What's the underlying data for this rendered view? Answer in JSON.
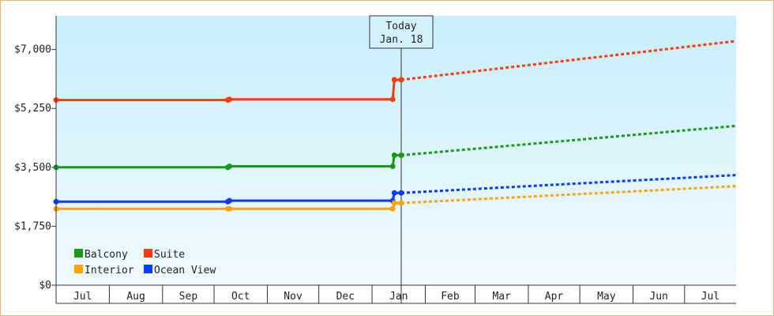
{
  "chart_data": {
    "type": "line",
    "title": "",
    "xlabel": "",
    "ylabel": "",
    "ylim": [
      0,
      8000
    ],
    "y_ticks": [
      {
        "value": 0,
        "label": "$0"
      },
      {
        "value": 1750,
        "label": "$1,750"
      },
      {
        "value": 3500,
        "label": "$3,500"
      },
      {
        "value": 5250,
        "label": "$5,250"
      },
      {
        "value": 7000,
        "label": "$7,000"
      }
    ],
    "x_range": [
      "2023-07-01",
      "2024-07-31"
    ],
    "x_months": [
      {
        "label": "Jul",
        "start": "2023-07-01"
      },
      {
        "label": "Aug",
        "start": "2023-08-01"
      },
      {
        "label": "Sep",
        "start": "2023-09-01"
      },
      {
        "label": "Oct",
        "start": "2023-10-01"
      },
      {
        "label": "Nov",
        "start": "2023-11-01"
      },
      {
        "label": "Dec",
        "start": "2023-12-01"
      },
      {
        "label": "Jan",
        "start": "2024-01-01"
      },
      {
        "label": "Feb",
        "start": "2024-02-01"
      },
      {
        "label": "Mar",
        "start": "2024-03-01"
      },
      {
        "label": "Apr",
        "start": "2024-04-01"
      },
      {
        "label": "May",
        "start": "2024-05-01"
      },
      {
        "label": "Jun",
        "start": "2024-06-01"
      },
      {
        "label": "Jul",
        "start": "2024-07-01"
      }
    ],
    "today": {
      "date": "2024-01-18",
      "label_line1": "Today",
      "label_line2": "Jan. 18"
    },
    "legend_position": "bottom-left",
    "grid": false,
    "colors": {
      "plot_top": "#c8eefa",
      "plot_bottom": "#f1fafe",
      "frame_border": "#e3b87a"
    },
    "series": [
      {
        "name": "Suite",
        "color": "#ff3a0a",
        "historical": [
          {
            "x": "2023-07-01",
            "y": 5500
          },
          {
            "x": "2023-10-09",
            "y": 5500
          },
          {
            "x": "2023-10-10",
            "y": 5520
          },
          {
            "x": "2024-01-13",
            "y": 5520
          },
          {
            "x": "2024-01-14",
            "y": 6100
          },
          {
            "x": "2024-01-18",
            "y": 6100
          }
        ],
        "projected": [
          {
            "x": "2024-01-18",
            "y": 6100
          },
          {
            "x": "2024-07-31",
            "y": 7250
          }
        ]
      },
      {
        "name": "Balcony",
        "color": "#189a18",
        "historical": [
          {
            "x": "2023-07-01",
            "y": 3500
          },
          {
            "x": "2023-10-09",
            "y": 3500
          },
          {
            "x": "2023-10-10",
            "y": 3530
          },
          {
            "x": "2024-01-13",
            "y": 3530
          },
          {
            "x": "2024-01-14",
            "y": 3860
          },
          {
            "x": "2024-01-18",
            "y": 3860
          }
        ],
        "projected": [
          {
            "x": "2024-01-18",
            "y": 3860
          },
          {
            "x": "2024-07-31",
            "y": 4730
          }
        ]
      },
      {
        "name": "Ocean View",
        "color": "#0a3cff",
        "historical": [
          {
            "x": "2023-07-01",
            "y": 2480
          },
          {
            "x": "2023-10-09",
            "y": 2480
          },
          {
            "x": "2023-10-10",
            "y": 2510
          },
          {
            "x": "2024-01-13",
            "y": 2510
          },
          {
            "x": "2024-01-14",
            "y": 2740
          },
          {
            "x": "2024-01-18",
            "y": 2740
          }
        ],
        "projected": [
          {
            "x": "2024-01-18",
            "y": 2740
          },
          {
            "x": "2024-07-31",
            "y": 3270
          }
        ]
      },
      {
        "name": "Interior",
        "color": "#ffa20a",
        "historical": [
          {
            "x": "2023-07-01",
            "y": 2270
          },
          {
            "x": "2023-10-09",
            "y": 2270
          },
          {
            "x": "2023-10-10",
            "y": 2270
          },
          {
            "x": "2024-01-13",
            "y": 2270
          },
          {
            "x": "2024-01-14",
            "y": 2440
          },
          {
            "x": "2024-01-18",
            "y": 2440
          }
        ],
        "projected": [
          {
            "x": "2024-01-18",
            "y": 2440
          },
          {
            "x": "2024-07-31",
            "y": 2940
          }
        ]
      }
    ],
    "legend": [
      {
        "name": "Balcony",
        "color": "#189a18"
      },
      {
        "name": "Suite",
        "color": "#ff3a0a"
      },
      {
        "name": "Interior",
        "color": "#ffa20a"
      },
      {
        "name": "Ocean View",
        "color": "#0a3cff"
      }
    ]
  }
}
